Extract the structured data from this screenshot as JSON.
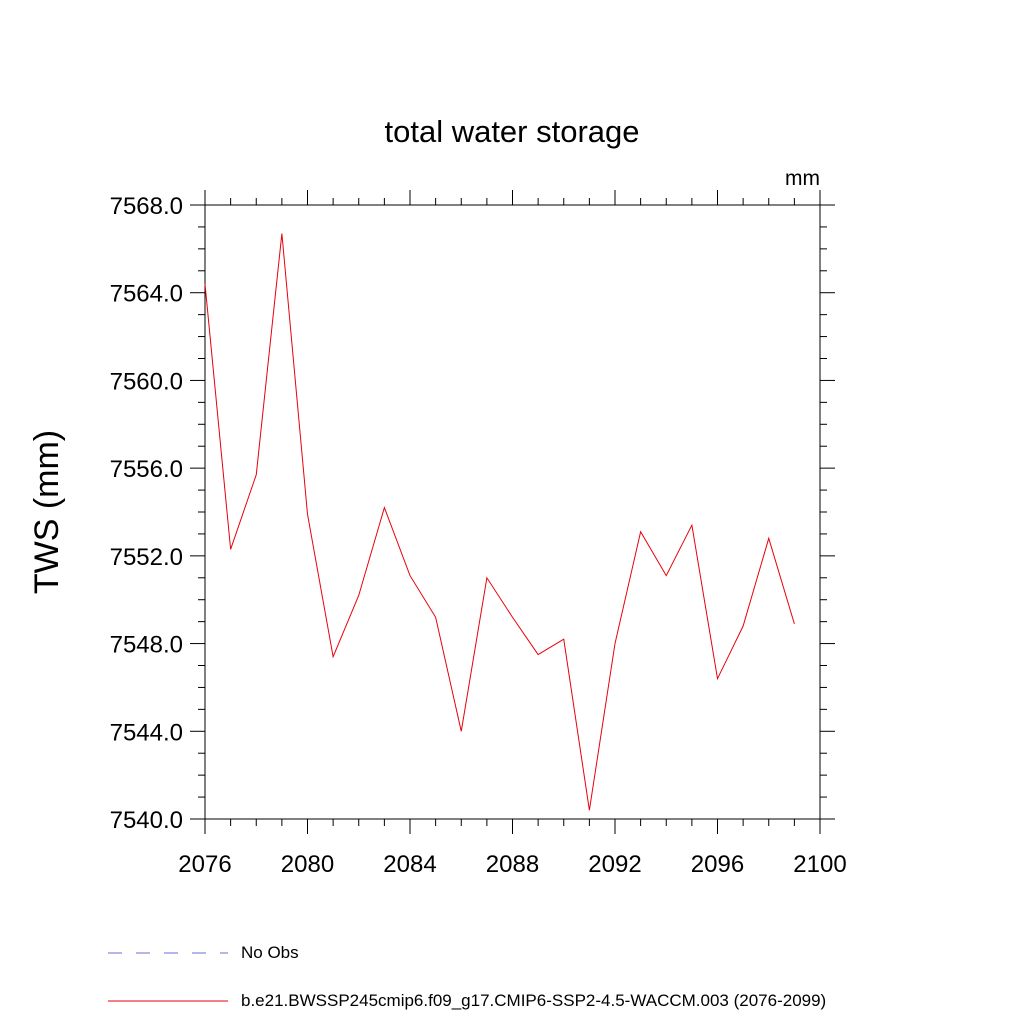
{
  "chart_data": {
    "type": "line",
    "title": "total water storage",
    "units_label": "mm",
    "xlabel": "",
    "ylabel": "TWS  (mm)",
    "xlim": [
      2076,
      2100
    ],
    "ylim": [
      7540.0,
      7568.0
    ],
    "x_ticks": [
      2076,
      2080,
      2084,
      2088,
      2092,
      2096,
      2100
    ],
    "x_tick_labels": [
      "2076",
      "2080",
      "2084",
      "2088",
      "2092",
      "2096",
      "2100"
    ],
    "y_ticks": [
      7540,
      7544,
      7548,
      7552,
      7556,
      7560,
      7564,
      7568
    ],
    "y_tick_labels": [
      "7540.0",
      "7544.0",
      "7548.0",
      "7552.0",
      "7556.0",
      "7560.0",
      "7564.0",
      "7568.0"
    ],
    "grid": false,
    "series": [
      {
        "name": "b.e21.BWSSP245cmip6.f09_g17.CMIP6-SSP2-4.5-WACCM.003 (2076-2099)",
        "color": "#e8000b",
        "x": [
          2076,
          2077,
          2078,
          2079,
          2080,
          2081,
          2082,
          2083,
          2084,
          2085,
          2086,
          2087,
          2088,
          2089,
          2090,
          2091,
          2092,
          2093,
          2094,
          2095,
          2096,
          2097,
          2098,
          2099
        ],
        "values": [
          7564.4,
          7552.3,
          7555.7,
          7566.7,
          7553.9,
          7547.4,
          7550.2,
          7554.2,
          7551.1,
          7549.2,
          7544.0,
          7551.0,
          7549.2,
          7547.5,
          7548.2,
          7540.4,
          7548.0,
          7553.1,
          7551.1,
          7553.4,
          7546.4,
          7548.8,
          7552.8,
          7548.9
        ]
      }
    ],
    "legend": {
      "placement": "bottom-left",
      "entries": [
        {
          "label": "No Obs",
          "color": "#6b6fd8",
          "style": "dashed"
        },
        {
          "label": "b.e21.BWSSP245cmip6.f09_g17.CMIP6-SSP2-4.5-WACCM.003 (2076-2099)",
          "color": "#e8000b",
          "style": "solid"
        }
      ]
    }
  }
}
